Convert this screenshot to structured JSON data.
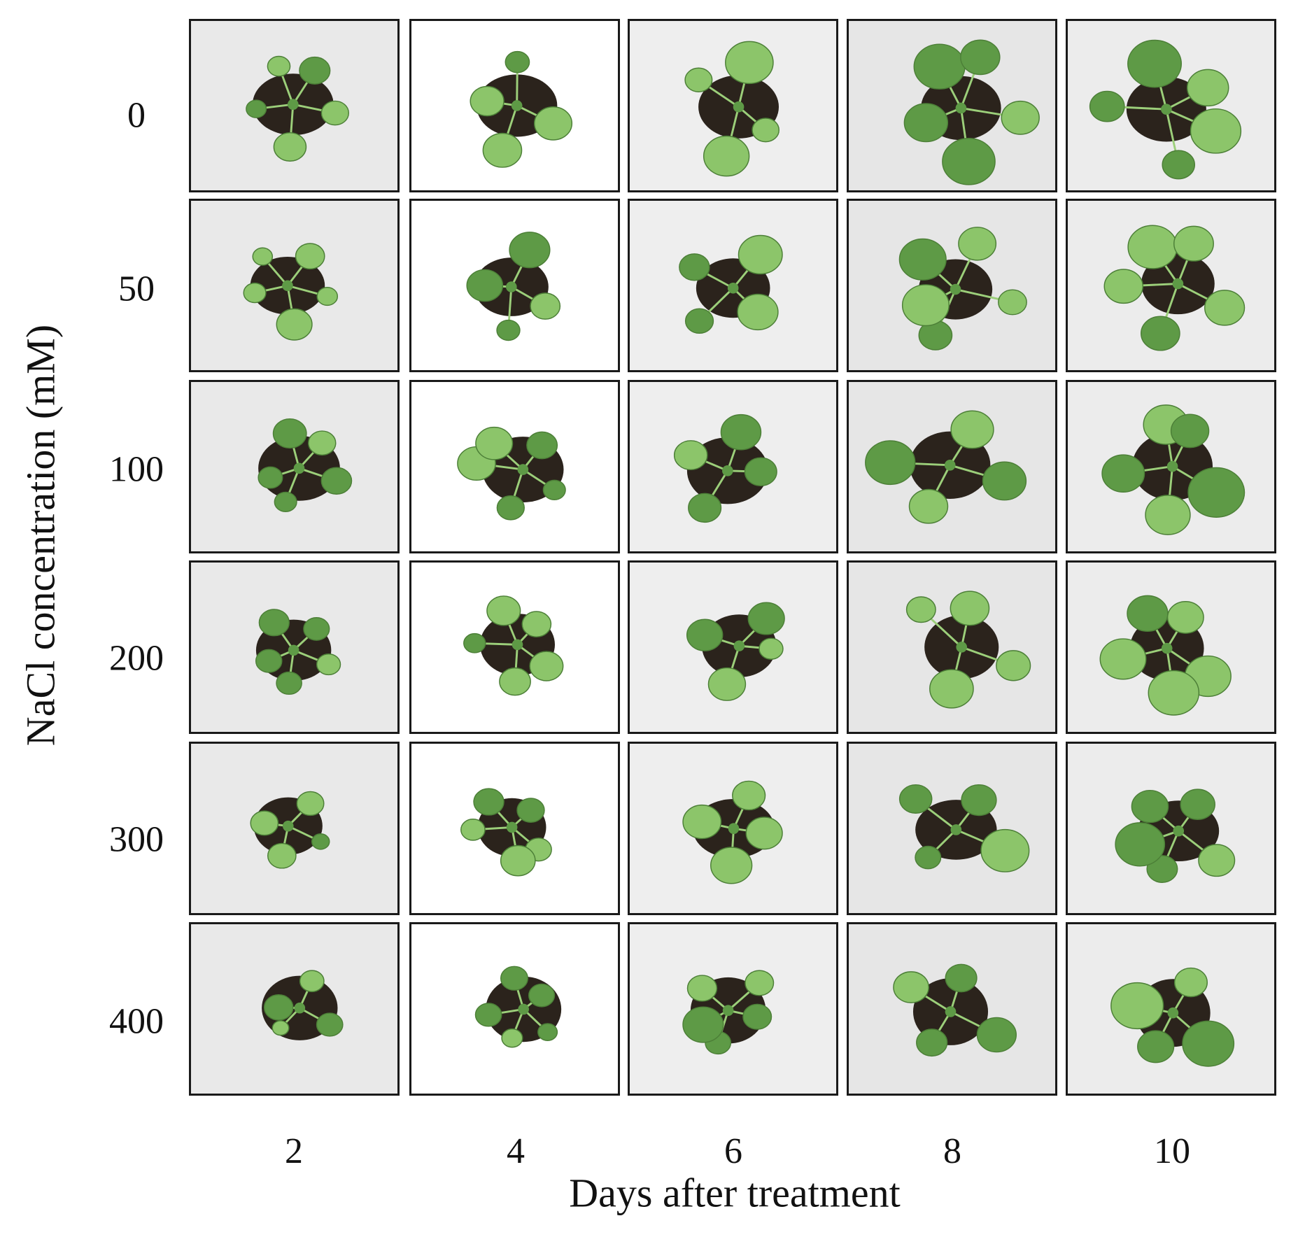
{
  "figure": {
    "y_axis_label": "NaCl concentration (mM)",
    "x_axis_label": "Days after treatment",
    "rows": [
      "0",
      "50",
      "100",
      "200",
      "300",
      "400"
    ],
    "columns": [
      "2",
      "4",
      "6",
      "8",
      "10"
    ],
    "panel_background_colors": [
      "#e9e9e9",
      "#ffffff",
      "#eeeeee",
      "#e6e6e6",
      "#ececec"
    ],
    "soil_color": "#2b231c",
    "leaf_color": "#5e9a46",
    "leaf_highlight_color": "#8cc56a",
    "frame_color": "#1a1a1a"
  }
}
